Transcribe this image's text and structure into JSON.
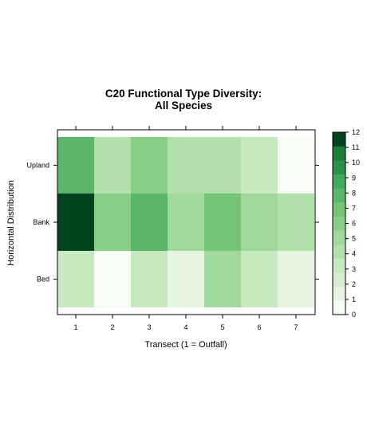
{
  "chart_data": {
    "type": "heatmap",
    "title": [
      "C20 Functional Type Diversity:",
      "All Species"
    ],
    "xlabel": "Transect (1 = Outfall)",
    "ylabel": "Horizontal Distribution",
    "x_categories": [
      "1",
      "2",
      "3",
      "4",
      "5",
      "6",
      "7"
    ],
    "y_categories": [
      "Bed",
      "Bank",
      "Upland"
    ],
    "values": {
      "Upland": [
        8,
        4,
        6,
        4,
        4,
        3,
        0
      ],
      "Bank": [
        12,
        6,
        8,
        5,
        7,
        5,
        4
      ],
      "Bed": [
        3,
        0,
        3,
        1,
        5,
        3,
        1
      ]
    },
    "colorbar": {
      "ticks": [
        "0",
        "1",
        "2",
        "3",
        "4",
        "5",
        "6",
        "7",
        "8",
        "9",
        "10",
        "11",
        "12"
      ],
      "range": [
        0,
        12
      ],
      "colors": [
        "#f7fcf5",
        "#e5f5e0",
        "#d6efd0",
        "#c7e9c0",
        "#b2e0ab",
        "#a1d99b",
        "#88ce87",
        "#74c476",
        "#5ab669",
        "#41ab5d",
        "#2a9149",
        "#1a7f3a",
        "#00441b"
      ]
    },
    "legend": "right",
    "grid": false
  }
}
